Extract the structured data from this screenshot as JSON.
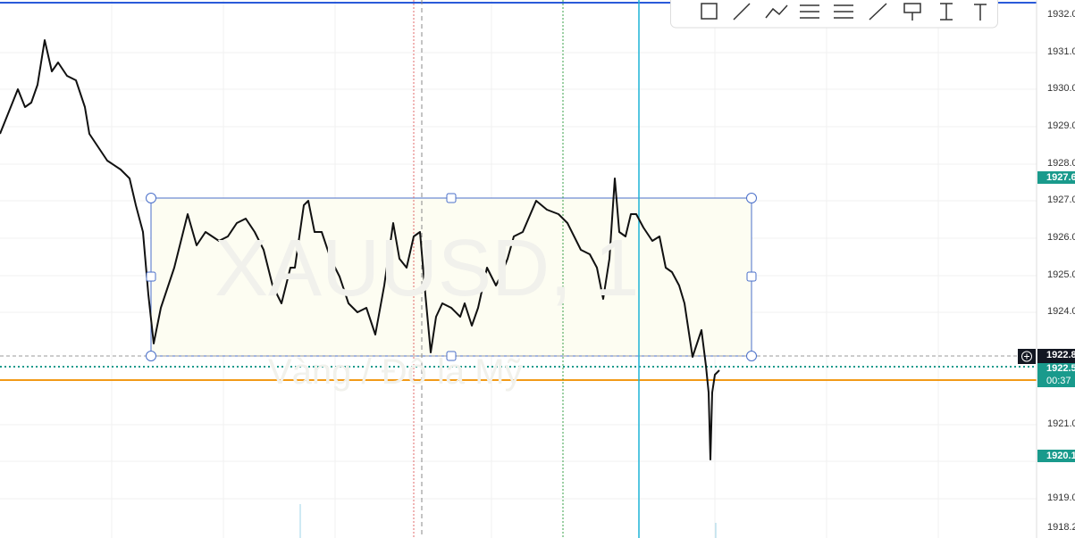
{
  "price_axis": {
    "labels": [
      "1932.0",
      "1931.0",
      "1930.0",
      "1929.0",
      "1928.0",
      "1927.0",
      "1926.0",
      "1925.0",
      "1924.0",
      "1921.0",
      "1919.0",
      "1918.2"
    ]
  },
  "badges": {
    "high_marker": "1927.6",
    "crosshair_price": "1922.8",
    "last_price": "1922.5",
    "countdown": "00:37",
    "low_marker": "1920.1"
  },
  "watermark": {
    "symbol": "XAUUSD, 1",
    "description": "Vàng / Đô la Mỹ"
  }
}
